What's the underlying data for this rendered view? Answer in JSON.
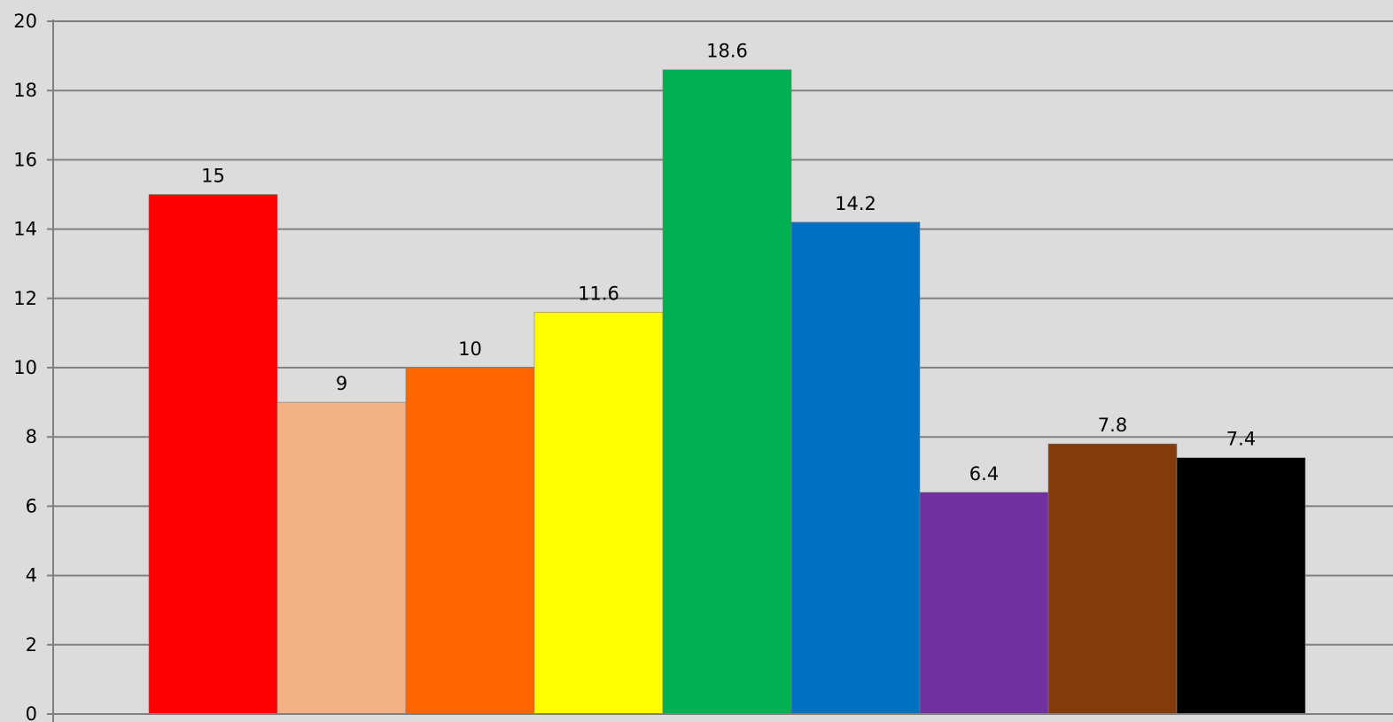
{
  "chart_data": {
    "type": "bar",
    "title": "",
    "xlabel": "",
    "ylabel": "",
    "ylim": [
      0,
      20
    ],
    "yticks": [
      0,
      2,
      4,
      6,
      8,
      10,
      12,
      14,
      16,
      18,
      20
    ],
    "grid": true,
    "legend": "none",
    "show_data_labels": true,
    "categories": [
      "",
      "",
      "",
      "",
      "",
      "",
      "",
      "",
      ""
    ],
    "values": [
      15,
      9,
      10,
      11.6,
      18.6,
      14.2,
      6.4,
      7.8,
      7.4
    ],
    "bar_labels": [
      "15",
      "9",
      "10",
      "11.6",
      "18.6",
      "14.2",
      "6.4",
      "7.8",
      "7.4"
    ],
    "colors": [
      "#ff0000",
      "#f4b183",
      "#ff6600",
      "#ffff00",
      "#00b050",
      "#0070c0",
      "#7030a0",
      "#843c0c",
      "#000000"
    ]
  }
}
